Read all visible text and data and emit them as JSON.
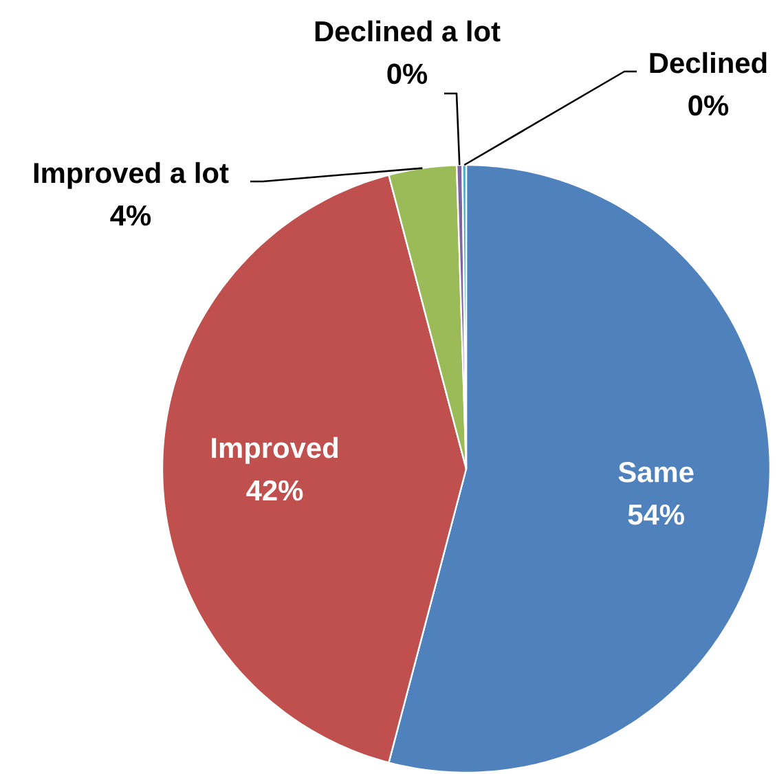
{
  "chart_data": {
    "type": "pie",
    "categories": [
      "Same",
      "Improved",
      "Improved a lot",
      "Declined a lot",
      "Declined"
    ],
    "values": [
      54.1,
      41.8,
      3.6,
      0.3,
      0.2
    ],
    "colors": [
      "#4f81bd",
      "#c0504d",
      "#9bbb59",
      "#8064a2",
      "#4bacc6"
    ],
    "value_labels": [
      "54%",
      "42%",
      "4%",
      "0%",
      "0%"
    ]
  }
}
